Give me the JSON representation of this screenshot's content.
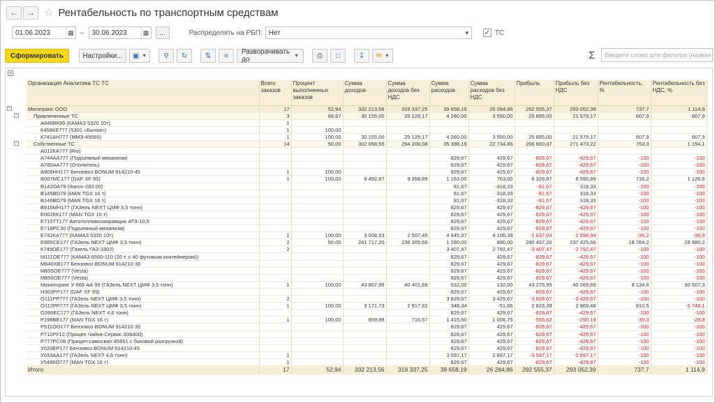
{
  "title": "Рентабельность по транспортным средствам",
  "filters": {
    "date_from": "01.06.2023",
    "dash": "–",
    "date_to": "30.06.2023",
    "dots": "...",
    "rbp_label": "Распределять на РБП:",
    "rbp_value": "Нет",
    "tc_label": "ТС",
    "tc_checked": "✓"
  },
  "toolbar": {
    "generate": "Сформировать",
    "settings": "Настройки...",
    "expand": "Разворачивать до",
    "search_placeholder": "Введите слово для фильтра (назван"
  },
  "table": {
    "headers": [
      "Организация Аналитика ТС ТС",
      "Всего заказов",
      "Процент выполненных заказов",
      "Сумма доходов",
      "Сумма доходов без НДС",
      "Сумма расходов",
      "Сумма расходов без НДС",
      "Прибыль",
      "Прибыль без НДС",
      "Рентабельность, %",
      "Рентабельность без НДС, %"
    ],
    "rows": [
      {
        "l": 0,
        "c": [
          "Мегатранс ООО",
          "17",
          "52,94",
          "332 213,56",
          "319 337,25",
          "39 658,19",
          "26 284,86",
          "292 555,37",
          "293 052,39",
          "737,7",
          "1 114,9"
        ]
      },
      {
        "l": 1,
        "c": [
          "Привлеченные ТС",
          "3",
          "66,67",
          "30 155,00",
          "25 129,17",
          "4 260,00",
          "3 550,00",
          "25 895,00",
          "21 579,17",
          "607,9",
          "607,9"
        ]
      },
      {
        "l": 2,
        "c": [
          "А846ВК99 (КАМАЗ 5320 10т)",
          "1",
          "",
          "",
          "",
          "",
          "",
          "",
          "",
          "",
          ""
        ]
      },
      {
        "l": 2,
        "c": [
          "К458КЕ777 (5301 «Бычок»)",
          "1",
          "100,00",
          "",
          "",
          "",
          "",
          "",
          "",
          "",
          ""
        ]
      },
      {
        "l": 2,
        "c": [
          "К741АН777 (ММЗ-45065)",
          "1",
          "100,00",
          "30 155,00",
          "25 129,17",
          "4 260,00",
          "3 550,00",
          "25 895,00",
          "21 579,17",
          "607,9",
          "607,9"
        ]
      },
      {
        "l": 1,
        "c": [
          "Собственные ТС",
          "14",
          "50,00",
          "302 058,56",
          "294 208,08",
          "35 398,19",
          "22 734,86",
          "266 660,37",
          "271 473,22",
          "753,3",
          "1 194,1"
        ]
      },
      {
        "l": 2,
        "c": [
          "А012КА777 (Rio)",
          "",
          "",
          "",
          "",
          "",
          "",
          "",
          "",
          "",
          ""
        ]
      },
      {
        "l": 2,
        "c": [
          "А744АА777 (Подъемный механизм)",
          "",
          "",
          "",
          "",
          "829,67",
          "429,67",
          "-829,67",
          "-429,67",
          "-100",
          "-100"
        ]
      },
      {
        "l": 2,
        "c": [
          "А780АА777 (Отопитель)",
          "",
          "",
          "",
          "",
          "829,67",
          "429,67",
          "-829,67",
          "-429,67",
          "-100",
          "-100"
        ]
      },
      {
        "l": 2,
        "c": [
          "А908НН177 Бензовоз BONUM 914210-45",
          "1",
          "100,00",
          "",
          "",
          "829,67",
          "429,67",
          "-829,67",
          "-429,67",
          "-100",
          "-100"
        ]
      },
      {
        "l": 2,
        "c": [
          "В007МС177 (DAF XF 95)",
          "1",
          "100,00",
          "9 492,87",
          "9 358,89",
          "1 163,00",
          "763,00",
          "8 329,87",
          "8 595,89",
          "716,2",
          "1 126,6"
        ]
      },
      {
        "l": 2,
        "c": [
          "В142ОА79 (Ikarus-283.00)",
          "",
          "",
          "",
          "",
          "81,67",
          "-318,33",
          "-81,67",
          "318,33",
          "-100",
          "-100"
        ]
      },
      {
        "l": 2,
        "c": [
          "В145ВО79 (MAN TGX 16 т)",
          "",
          "",
          "",
          "",
          "81,67",
          "-318,33",
          "-81,67",
          "318,33",
          "-100",
          "-100"
        ]
      },
      {
        "l": 2,
        "c": [
          "В146ВО79 (MAN TGX 16 т)",
          "",
          "",
          "",
          "",
          "81,67",
          "-318,33",
          "-81,67",
          "318,33",
          "-100",
          "-100"
        ]
      },
      {
        "l": 2,
        "c": [
          "В915МН177 (ГАЗель NEXT ЦМФ 3,5 тонн)",
          "",
          "",
          "",
          "",
          "829,67",
          "429,67",
          "-829,67",
          "-429,67",
          "-100",
          "-100"
        ]
      },
      {
        "l": 2,
        "c": [
          "Е062КК177 (MAN TGX 16 т)",
          "",
          "",
          "",
          "",
          "829,67",
          "429,67",
          "-829,67",
          "-429,67",
          "-100",
          "-100"
        ]
      },
      {
        "l": 2,
        "c": [
          "Е715ТТ177 Автотопливозаправщик АТЗ-10,5",
          "",
          "",
          "",
          "",
          "829,67",
          "429,67",
          "-829,67",
          "-429,67",
          "-100",
          "-100"
        ]
      },
      {
        "l": 2,
        "c": [
          "Е718РС30 (Подъемный механизм)",
          "",
          "",
          "",
          "",
          "829,67",
          "429,67",
          "-829,67",
          "-429,67",
          "-100",
          "-100"
        ]
      },
      {
        "l": 2,
        "c": [
          "Е742КА777 (КАМАЗ 5320 10т)",
          "1",
          "100,00",
          "3 008,93",
          "2 507,45",
          "4 645,97",
          "4 106,39",
          "-1 637,04",
          "-1 598,94",
          "-35,2",
          "-38,9"
        ]
      },
      {
        "l": 2,
        "c": [
          "Е885СЕ177 (ГАЗель NEXT ЦМФ 3,5 тонн)",
          "2",
          "50,00",
          "241 717,20",
          "238 305,66",
          "1 280,00",
          "880,00",
          "240 437,20",
          "237 425,66",
          "18 784,2",
          "26 980,2"
        ]
      },
      {
        "l": 2,
        "c": [
          "К745ОЕ177 (Газель ГАЗ-3302)",
          "2",
          "",
          "",
          "",
          "3 407,47",
          "2 792,47",
          "-3 407,47",
          "-2 792,47",
          "-100",
          "-100"
        ]
      },
      {
        "l": 2,
        "c": [
          "М111ОЕ777 (КАМАЗ 6560-110 (20 т. с 40 футовым контейнером))",
          "",
          "",
          "",
          "",
          "829,67",
          "429,67",
          "-829,67",
          "-429,67",
          "-100",
          "-100"
        ]
      },
      {
        "l": 2,
        "c": [
          "М640ХВ177 Бензовоз BONUM 914210-30",
          "",
          "",
          "",
          "",
          "829,67",
          "429,67",
          "-829,67",
          "-429,67",
          "-100",
          "-100"
        ]
      },
      {
        "l": 2,
        "c": [
          "М855ОЕ777 (Vesta)",
          "",
          "",
          "",
          "",
          "829,67",
          "429,67",
          "-829,67",
          "-429,67",
          "-100",
          "-100"
        ]
      },
      {
        "l": 2,
        "c": [
          "М856ОЕ777 (Vesta)",
          "",
          "",
          "",
          "",
          "829,67",
          "429,67",
          "-829,67",
          "-429,67",
          "-100",
          "-100"
        ]
      },
      {
        "l": 2,
        "c": [
          "Мониторинг У 668 АА 99 (ГАЗель NEXT ЦМФ 3,5 тонн)",
          "1",
          "100,00",
          "43 807,95",
          "40 401,69",
          "532,00",
          "132,00",
          "43 275,95",
          "40 269,69",
          "8 134,6",
          "30 507,3"
        ]
      },
      {
        "l": 2,
        "c": [
          "Н303РР177 (DAF XF 95)",
          "",
          "",
          "",
          "",
          "829,67",
          "429,67",
          "-829,67",
          "-429,67",
          "-100",
          "-100"
        ]
      },
      {
        "l": 2,
        "c": [
          "О111РР777 (ГАЗель NEXT ЦМФ 3,5 тонн)",
          "2",
          "",
          "",
          "",
          "3 829,67",
          "3 429,67",
          "-3 829,67",
          "-3 429,67",
          "-100",
          "-100"
        ]
      },
      {
        "l": 2,
        "c": [
          "О112РР777 (ГАЗель NEXT ЦМФ 3,5 тонн)",
          "1",
          "100,00",
          "3 171,73",
          "2 917,82",
          "348,34",
          "-51,66",
          "2 823,39",
          "2 969,48",
          "810,5",
          "-5 748,1"
        ]
      },
      {
        "l": 2,
        "c": [
          "О266ЕС177 (ГАЗель NEXT 4,6 тонн)",
          "",
          "",
          "",
          "",
          "829,67",
          "429,67",
          "-829,67",
          "-429,67",
          "-100",
          "-100"
        ]
      },
      {
        "l": 2,
        "c": [
          "Р198ВЕ177 (MAN TGX 16 т)",
          "1",
          "100,00",
          "859,88",
          "716,57",
          "1 415,50",
          "1 006,75",
          "-555,62",
          "-290,18",
          "-39,3",
          "-28,8"
        ]
      },
      {
        "l": 2,
        "c": [
          "Р511ОО177 Бензовоз BONUM 914210-30",
          "",
          "",
          "",
          "",
          "829,67",
          "429,67",
          "-829,67",
          "-429,67",
          "-100",
          "-100"
        ]
      },
      {
        "l": 2,
        "c": [
          "Р711РУ12 (Прицеп Чайка-Сервис 838400)",
          "",
          "",
          "",
          "",
          "829,67",
          "429,67",
          "-829,67",
          "-429,67",
          "-100",
          "-100"
        ]
      },
      {
        "l": 2,
        "c": [
          "Р777РС08 (Прицеп-самосвал 85651 с боковой разгрузкой)",
          "",
          "",
          "",
          "",
          "829,67",
          "429,67",
          "-829,67",
          "-429,67",
          "-100",
          "-100"
        ]
      },
      {
        "l": 2,
        "c": [
          "У020ЕР177 Бензовоз BONUM 914210-45",
          "",
          "",
          "",
          "",
          "829,67",
          "429,67",
          "-829,67",
          "-429,67",
          "-100",
          "-100"
        ]
      },
      {
        "l": 2,
        "c": [
          "У033АА177 (ГАЗель NEXT 4,6 тонн)",
          "1",
          "",
          "",
          "",
          "3 597,17",
          "2 897,17",
          "-3 597,17",
          "-2 897,17",
          "-100",
          "-100"
        ]
      },
      {
        "l": 2,
        "c": [
          "У548КО777 (MAN TGX 16 т)",
          "1",
          "",
          "",
          "",
          "829,67",
          "429,67",
          "-829,67",
          "-429,67",
          "-100",
          "-100"
        ]
      }
    ],
    "total": [
      "Итого",
      "17",
      "52,94",
      "332 213,56",
      "319 337,25",
      "39 658,19",
      "26 284,86",
      "292 555,37",
      "293 052,39",
      "737,7",
      "1 114,9"
    ]
  }
}
